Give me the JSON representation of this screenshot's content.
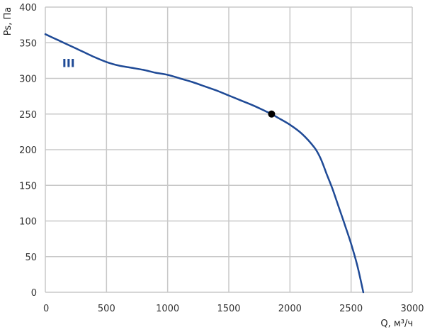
{
  "chart_data": {
    "type": "line",
    "xlabel": "Q, м³/ч",
    "ylabel": "Ps, Па",
    "xlim": [
      0,
      3000
    ],
    "ylim": [
      0,
      400
    ],
    "xticks": [
      0,
      500,
      1000,
      1500,
      2000,
      2500,
      3000
    ],
    "yticks": [
      0,
      50,
      100,
      150,
      200,
      250,
      300,
      350,
      400
    ],
    "grid": true,
    "colors": {
      "series": "#1f4a96",
      "grid": "#c8c8c8",
      "point": "#000000"
    },
    "series": [
      {
        "label": "III",
        "x": [
          0,
          100,
          200,
          300,
          400,
          500,
          600,
          700,
          800,
          900,
          1000,
          1100,
          1200,
          1300,
          1400,
          1500,
          1600,
          1700,
          1800,
          1850,
          1900,
          2000,
          2100,
          2200,
          2250,
          2300,
          2350,
          2400,
          2450,
          2500,
          2550,
          2600
        ],
        "y": [
          362,
          354,
          346,
          338,
          330,
          323,
          318,
          315,
          312,
          308,
          305,
          300,
          295,
          289,
          283,
          276,
          269,
          262,
          254,
          250,
          245,
          235,
          222,
          203,
          188,
          166,
          144,
          119,
          94,
          68,
          38,
          0
        ]
      }
    ],
    "operating_point": {
      "x": 1850,
      "y": 250
    },
    "series_label_position": {
      "x": 190,
      "y": 322
    }
  }
}
